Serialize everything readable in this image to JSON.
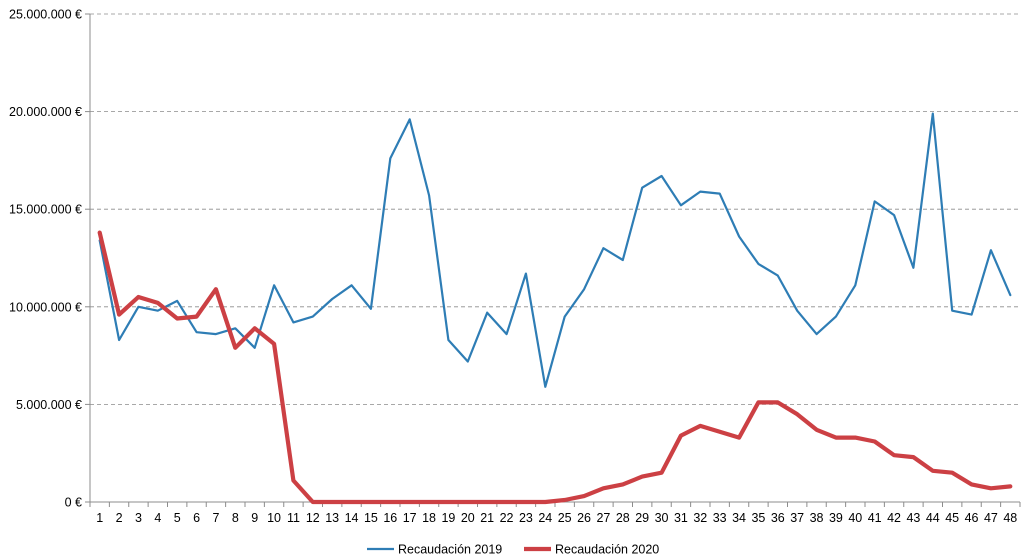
{
  "chart_data": {
    "type": "line",
    "title": "",
    "xlabel": "",
    "ylabel": "",
    "categories": [
      "1",
      "2",
      "3",
      "4",
      "5",
      "6",
      "7",
      "8",
      "9",
      "10",
      "11",
      "12",
      "13",
      "14",
      "15",
      "16",
      "17",
      "18",
      "19",
      "20",
      "21",
      "22",
      "23",
      "24",
      "25",
      "26",
      "27",
      "28",
      "29",
      "30",
      "31",
      "32",
      "33",
      "34",
      "35",
      "36",
      "37",
      "38",
      "39",
      "40",
      "41",
      "42",
      "43",
      "44",
      "45",
      "46",
      "47",
      "48"
    ],
    "ylim": [
      0,
      25000000
    ],
    "y_ticks": [
      0,
      5000000,
      10000000,
      15000000,
      20000000,
      25000000
    ],
    "y_tick_labels": [
      "0 €",
      "5.000.000 €",
      "10.000.000 €",
      "15.000.000 €",
      "20.000.000 €",
      "25.000.000 €"
    ],
    "grid": "horizontal dashed",
    "legend_position": "bottom",
    "series": [
      {
        "name": "Recaudación 2019",
        "color": "#2e7db5",
        "values": [
          13400000,
          8300000,
          10000000,
          9800000,
          10300000,
          8700000,
          8600000,
          8900000,
          7900000,
          11100000,
          9200000,
          9500000,
          10400000,
          11100000,
          9900000,
          17600000,
          19600000,
          15700000,
          8300000,
          7200000,
          9700000,
          8600000,
          11700000,
          5900000,
          9500000,
          10900000,
          13000000,
          12400000,
          16100000,
          16700000,
          15200000,
          15900000,
          15800000,
          13600000,
          12200000,
          11600000,
          9800000,
          8600000,
          9500000,
          11100000,
          15400000,
          14700000,
          12000000,
          19900000,
          9800000,
          9600000,
          12900000,
          10600000
        ]
      },
      {
        "name": "Recaudación 2020",
        "color": "#cc4044",
        "values": [
          13800000,
          9600000,
          10500000,
          10200000,
          9400000,
          9500000,
          10900000,
          7900000,
          8900000,
          8100000,
          1100000,
          0,
          0,
          0,
          0,
          0,
          0,
          0,
          0,
          0,
          0,
          0,
          0,
          0,
          100000,
          300000,
          700000,
          900000,
          1300000,
          1500000,
          3400000,
          3900000,
          3600000,
          3300000,
          5100000,
          5100000,
          4500000,
          3700000,
          3300000,
          3300000,
          3100000,
          2400000,
          2300000,
          1600000,
          1500000,
          900000,
          700000,
          800000
        ]
      }
    ]
  }
}
